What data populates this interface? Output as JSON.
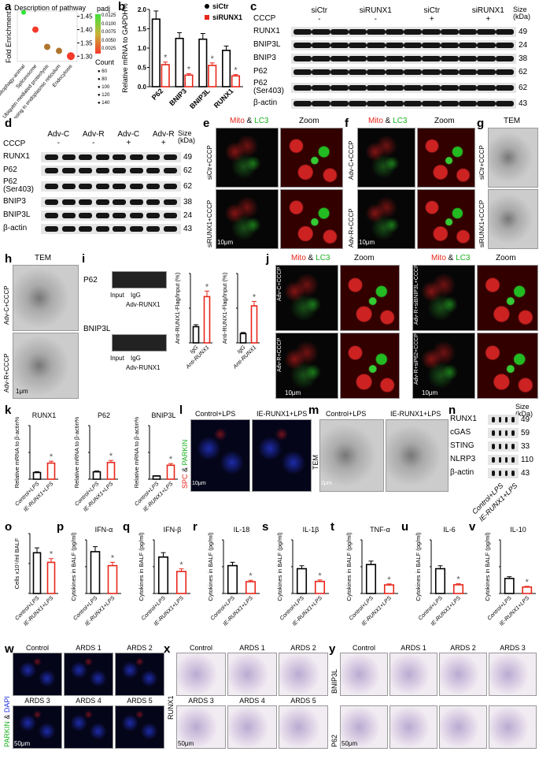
{
  "panels": {
    "a": "a",
    "b": "b",
    "c": "c",
    "d": "d",
    "e": "e",
    "f": "f",
    "g": "g",
    "h": "h",
    "i": "i",
    "j": "j",
    "k": "k",
    "l": "l",
    "m": "m",
    "n": "n",
    "o": "o",
    "p": "p",
    "q": "q",
    "r": "r",
    "s": "s",
    "t": "t",
    "u": "u",
    "v": "v",
    "w": "w",
    "x": "x",
    "y": "y"
  },
  "panel_a": {
    "title": "Description of pathway",
    "ylabel": "Fold Enrichment",
    "padj_title": "padj",
    "padj_ticks": [
      "0.0125",
      "0.0100",
      "0.0075",
      "0.0050",
      "0.0025"
    ],
    "count_title": "Count",
    "count_ticks": [
      "60",
      "80",
      "100",
      "120",
      "140"
    ]
  },
  "panel_c": {
    "cccp_label": "CCCP",
    "cccp": [
      "-",
      "-",
      "+",
      "+"
    ],
    "groups": [
      "siCtr",
      "siRUNX1",
      "siCtr",
      "siRUNX1"
    ],
    "size_label": "Size (kDa)",
    "rows": [
      {
        "name": "RUNX1",
        "size": "49"
      },
      {
        "name": "BNIP3L",
        "size": "24"
      },
      {
        "name": "BNIP3",
        "size": "38"
      },
      {
        "name": "P62",
        "size": "62"
      },
      {
        "name": "P62 (Ser403)",
        "size": "62"
      },
      {
        "name": "β-actin",
        "size": "43"
      }
    ]
  },
  "panel_d": {
    "cccp_label": "CCCP",
    "cccp": [
      "-",
      "-",
      "+",
      "+"
    ],
    "groups": [
      "Adv-C",
      "Adv-R",
      "Adv-C",
      "Adv-R"
    ],
    "size_label": "Size (kDa)",
    "rows": [
      {
        "name": "RUNX1",
        "size": "49"
      },
      {
        "name": "P62",
        "size": "62"
      },
      {
        "name": "P62 (Ser403)",
        "size": "62"
      },
      {
        "name": "BNIP3",
        "size": "38"
      },
      {
        "name": "BNIP3L",
        "size": "24"
      },
      {
        "name": "β-actin",
        "size": "43"
      }
    ]
  },
  "panel_e": {
    "title_red": "Mito",
    "amp": " & ",
    "title_green": "LC3",
    "zoom": "Zoom",
    "rows": [
      "siCtr+CCCP",
      "siRUNX1+CCCP"
    ],
    "scale": "10μm"
  },
  "panel_f": {
    "title_red": "Mito",
    "amp": " & ",
    "title_green": "LC3",
    "zoom": "Zoom",
    "rows": [
      "Adv-C+CCCP",
      "Adv-R+CCCP"
    ],
    "scale": "10μm"
  },
  "panel_g": {
    "title": "TEM",
    "rows": [
      "siCtr+CCCP",
      "siRUNX1+CCCP"
    ]
  },
  "panel_h": {
    "title": "TEM",
    "rows": [
      "Adv-C+CCCP",
      "Adv-R+CCCP"
    ],
    "scale": "1μm"
  },
  "panel_i": {
    "gels": [
      {
        "name": "P62",
        "lanes": [
          "Input",
          "IgG",
          "Adv-RUNX1"
        ]
      },
      {
        "name": "BNIP3L",
        "lanes": [
          "Input",
          "IgG",
          "Adv-RUNX1"
        ]
      }
    ]
  },
  "panel_j": {
    "title_red": "Mito",
    "amp": " & ",
    "title_green": "LC3",
    "zoom": "Zoom",
    "rows": [
      "Adv-C+CCCP",
      "Adv-R+CCCP",
      "Adv-R+siBNIP3L+CCCP",
      "Adv-R+siP62+CCCP"
    ],
    "scale": "10μm"
  },
  "panel_l": {
    "cols": [
      "Control+LPS",
      "IE-RUNX1+LPS"
    ],
    "stain_red": "SPC",
    "amp": " & ",
    "stain_green": "PARKIN",
    "scale": "10μm"
  },
  "panel_m": {
    "cols": [
      "Control+LPS",
      "IE-RUNX1+LPS"
    ],
    "side": "TEM",
    "scale": "2μm"
  },
  "panel_n": {
    "size_label": "Size (kDa)",
    "rows": [
      {
        "name": "RUNX1",
        "size": "49"
      },
      {
        "name": "cGAS",
        "size": "59"
      },
      {
        "name": "STING",
        "size": "33"
      },
      {
        "name": "NLRP3",
        "size": "110"
      },
      {
        "name": "β-actin",
        "size": "43"
      }
    ],
    "lanes": [
      "Control+LPS",
      "IE-RUNX1+LPS"
    ]
  },
  "panel_w": {
    "cols": [
      "Control",
      "ARDS 1",
      "ARDS 2",
      "ARDS 3",
      "ARDS 4",
      "ARDS 5"
    ],
    "stain_green": "PARKIN",
    "amp": " & ",
    "stain_blue": "DAPI",
    "scale": "50μm"
  },
  "panel_x": {
    "cols": [
      "Control",
      "ARDS 1",
      "ARDS 2",
      "ARDS 3",
      "ARDS 4",
      "ARDS 5"
    ],
    "side": "RUNX1",
    "scale": "50μm"
  },
  "panel_y": {
    "cols": [
      "Control",
      "ARDS 1",
      "ARDS 2",
      "ARDS 3"
    ],
    "rows": [
      "BNIP3L",
      "P62"
    ],
    "scale": "50μm"
  },
  "colors": {
    "control": "#000000",
    "treated": "#e8261b"
  },
  "chart_data": [
    {
      "id": "a",
      "type": "scatter",
      "title": "Description of pathway",
      "ylabel": "Fold Enrichment",
      "categories": [
        "Mitophagy-animal",
        "Spliceosome",
        "Ubiquitin mediated proteolysis",
        "Protein processing in endoplasmic reticulum",
        "Endocytosis"
      ],
      "values": [
        1.465,
        1.4,
        1.335,
        1.32,
        1.3
      ],
      "padj": [
        0.0135,
        0.002,
        0.006,
        0.006,
        0.002
      ],
      "count": [
        60,
        100,
        100,
        100,
        140
      ],
      "ylim": [
        1.28,
        1.47
      ],
      "yticks": [
        "1.30",
        "1.35",
        "1.40",
        "1.45"
      ]
    },
    {
      "id": "b",
      "type": "bar",
      "ylabel": "Relative mRNA to GAPDH%",
      "categories": [
        "P62",
        "BNIP3",
        "BNIP3L",
        "RUNX1"
      ],
      "series": [
        {
          "name": "siCtr",
          "values": [
            1.75,
            1.25,
            1.23,
            0.94
          ]
        },
        {
          "name": "siRUNX1",
          "values": [
            0.57,
            0.3,
            0.55,
            0.28
          ]
        }
      ],
      "ylim": [
        0,
        2
      ],
      "yticks": [
        "0.0",
        "0.5",
        "1.0",
        "1.5",
        "2.0"
      ],
      "sig": "*"
    },
    {
      "id": "i1",
      "type": "bar",
      "ylabel": "Anti-RUNX1-Flag/Input (%)",
      "categories": [
        "IgG",
        "Anti-RUNX1"
      ],
      "values": [
        0.35,
        1.0
      ],
      "ylim": [
        0,
        1.5
      ],
      "sig": "*"
    },
    {
      "id": "i2",
      "type": "bar",
      "ylabel": "Anti-RUNX1-Flag/Input (%)",
      "categories": [
        "IgG",
        "Anti-RUNX1"
      ],
      "values": [
        0.2,
        0.8
      ],
      "ylim": [
        0,
        1.5
      ],
      "sig": "*"
    },
    {
      "id": "k1",
      "type": "bar",
      "title": "RUNX1",
      "ylabel": "Relative mRNA to β-actin%",
      "categories": [
        "Control+LPS",
        "IE-RUNX1+LPS"
      ],
      "values": [
        1.0,
        2.4
      ],
      "ylim": [
        0,
        8
      ],
      "sig": "*"
    },
    {
      "id": "k2",
      "type": "bar",
      "title": "P62",
      "ylabel": "Relative mRNA to β-actin%",
      "categories": [
        "Control+LPS",
        "IE-RUNX1+LPS"
      ],
      "values": [
        1.1,
        2.5
      ],
      "ylim": [
        0,
        8
      ],
      "sig": "*"
    },
    {
      "id": "k3",
      "type": "bar",
      "title": "BNIP3L",
      "ylabel": "Relative mRNA to β-actin%",
      "categories": [
        "Control+LPS",
        "IE-RUNX1+LPS"
      ],
      "values": [
        1.5,
        6.5
      ],
      "ylim": [
        0,
        25
      ],
      "sig": "*"
    },
    {
      "id": "o",
      "type": "bar",
      "ylabel": "Cells x10⁵/ml BALF",
      "categories": [
        "Control+LPS",
        "IE-RUNX1+LPS"
      ],
      "values": [
        6.8,
        5.2
      ],
      "ylim": [
        0,
        10
      ],
      "sig": "*"
    },
    {
      "id": "p",
      "type": "bar",
      "title": "IFN-α",
      "ylabel": "Cytokines in BALF (pg/ml)",
      "categories": [
        "Control+LPS",
        "IE-RUNX1+LPS"
      ],
      "values": [
        780,
        520
      ],
      "ylim": [
        0,
        1000
      ],
      "sig": "*"
    },
    {
      "id": "q",
      "type": "bar",
      "title": "IFN-β",
      "ylabel": "Cytokines in BALF (pg/ml)",
      "categories": [
        "Control+LPS",
        "IE-RUNX1+LPS"
      ],
      "values": [
        680,
        410
      ],
      "ylim": [
        0,
        1000
      ],
      "sig": "*"
    },
    {
      "id": "r",
      "type": "bar",
      "title": "IL-18",
      "ylabel": "Cytokines in BALF (pg/ml)",
      "categories": [
        "Control+LPS",
        "IE-RUNX1+LPS"
      ],
      "values": [
        5.2,
        2.2
      ],
      "ylim": [
        0,
        10
      ],
      "sig": "*"
    },
    {
      "id": "s",
      "type": "bar",
      "title": "IL-1β",
      "ylabel": "Cytokines in BALF (pg/ml)",
      "categories": [
        "Control+LPS",
        "IE-RUNX1+LPS"
      ],
      "values": [
        370,
        180
      ],
      "ylim": [
        0,
        800
      ],
      "sig": "*"
    },
    {
      "id": "t",
      "type": "bar",
      "title": "TNF-α",
      "ylabel": "Cytokines in BALF (pg/ml)",
      "categories": [
        "Control+LPS",
        "IE-RUNX1+LPS"
      ],
      "values": [
        13.5,
        4.0
      ],
      "ylim": [
        0,
        25
      ],
      "sig": "*"
    },
    {
      "id": "u",
      "type": "bar",
      "title": "IL-6",
      "ylabel": "Cytokines in BALF (pg/ml)",
      "categories": [
        "Control+LPS",
        "IE-RUNX1+LPS"
      ],
      "values": [
        370,
        130
      ],
      "ylim": [
        0,
        800
      ],
      "sig": "*"
    },
    {
      "id": "v",
      "type": "bar",
      "title": "IL-10",
      "ylabel": "Cytokines in BALF (pg/ml)",
      "categories": [
        "Control+LPS",
        "IE-RUNX1+LPS"
      ],
      "values": [
        28,
        12
      ],
      "ylim": [
        0,
        100
      ],
      "sig": "*"
    }
  ]
}
